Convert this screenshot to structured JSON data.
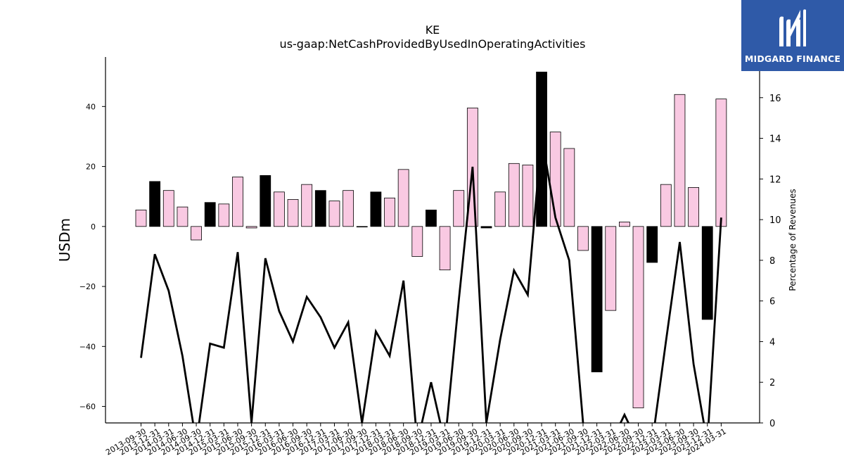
{
  "chart_data": {
    "type": "bar",
    "title": "KE",
    "subtitle": "us-gaap:NetCashProvidedByUsedInOperatingActivities",
    "ylabel": "USDm",
    "y2label": "Percentage of Revenues",
    "ylim": [
      -65.5,
      56.5
    ],
    "y2lim": [
      0,
      18
    ],
    "yticks": [
      -60,
      -40,
      -20,
      0,
      20,
      40
    ],
    "y2ticks": [
      0,
      2,
      4,
      6,
      8,
      10,
      12,
      14,
      16
    ],
    "grid": false,
    "categories": [
      "2013-09-30",
      "2013-12-31",
      "2014-03-31",
      "2014-06-30",
      "2014-09-30",
      "2014-12-31",
      "2015-03-31",
      "2015-06-30",
      "2015-09-30",
      "2015-12-31",
      "2016-03-31",
      "2016-06-30",
      "2016-09-30",
      "2016-12-31",
      "2017-03-31",
      "2017-06-30",
      "2017-09-30",
      "2017-12-31",
      "2018-03-31",
      "2018-06-30",
      "2018-09-30",
      "2018-12-31",
      "2019-03-31",
      "2019-06-30",
      "2019-09-30",
      "2019-12-31",
      "2020-03-31",
      "2020-06-30",
      "2020-09-30",
      "2020-12-31",
      "2021-03-31",
      "2021-06-30",
      "2021-09-30",
      "2021-12-31",
      "2022-03-31",
      "2022-06-30",
      "2022-09-30",
      "2022-12-31",
      "2023-03-31",
      "2023-06-30",
      "2023-09-30",
      "2023-12-31",
      "2024-03-31"
    ],
    "series": [
      {
        "kind": "bar",
        "values": [
          5.5,
          15,
          12,
          6.5,
          -4.5,
          8,
          7.5,
          16.5,
          -0.5,
          17,
          11.5,
          9,
          14,
          12,
          8.5,
          12,
          0,
          11.5,
          9.5,
          19,
          -10,
          5.5,
          -14.5,
          12,
          39.5,
          -0.5,
          11.5,
          21,
          20.5,
          51.5,
          31.5,
          26,
          -8,
          -48.5,
          -28,
          1.5,
          -60.5,
          -12,
          14,
          44,
          13,
          -31,
          42.5
        ],
        "highlight": [
          false,
          true,
          false,
          false,
          false,
          true,
          false,
          false,
          false,
          true,
          false,
          false,
          false,
          true,
          false,
          false,
          false,
          true,
          false,
          false,
          false,
          true,
          false,
          false,
          false,
          true,
          false,
          false,
          false,
          true,
          false,
          false,
          false,
          true,
          false,
          false,
          false,
          true,
          false,
          false,
          false,
          true,
          false
        ],
        "colors": {
          "normal": "#f9c9e2",
          "highlight": "#000000",
          "edge": "#000000"
        }
      },
      {
        "kind": "line",
        "axis": "right",
        "color": "#000000",
        "values": [
          3.2,
          8.3,
          6.5,
          3.3,
          -1,
          3.9,
          3.7,
          8.4,
          0,
          8.1,
          5.5,
          4.0,
          6.2,
          5.2,
          3.7,
          4.95,
          0,
          4.5,
          3.3,
          7.0,
          -1,
          2.0,
          -1,
          6.0,
          12.6,
          0,
          4.1,
          7.5,
          6.3,
          14.1,
          10.1,
          8.0,
          0,
          -1,
          -1,
          0.4,
          -1,
          -1,
          4.0,
          8.9,
          2.9,
          -1,
          10.1
        ]
      }
    ]
  },
  "logo": {
    "text": "MIDGARD FINANCE",
    "color": "#2f5aa8"
  }
}
